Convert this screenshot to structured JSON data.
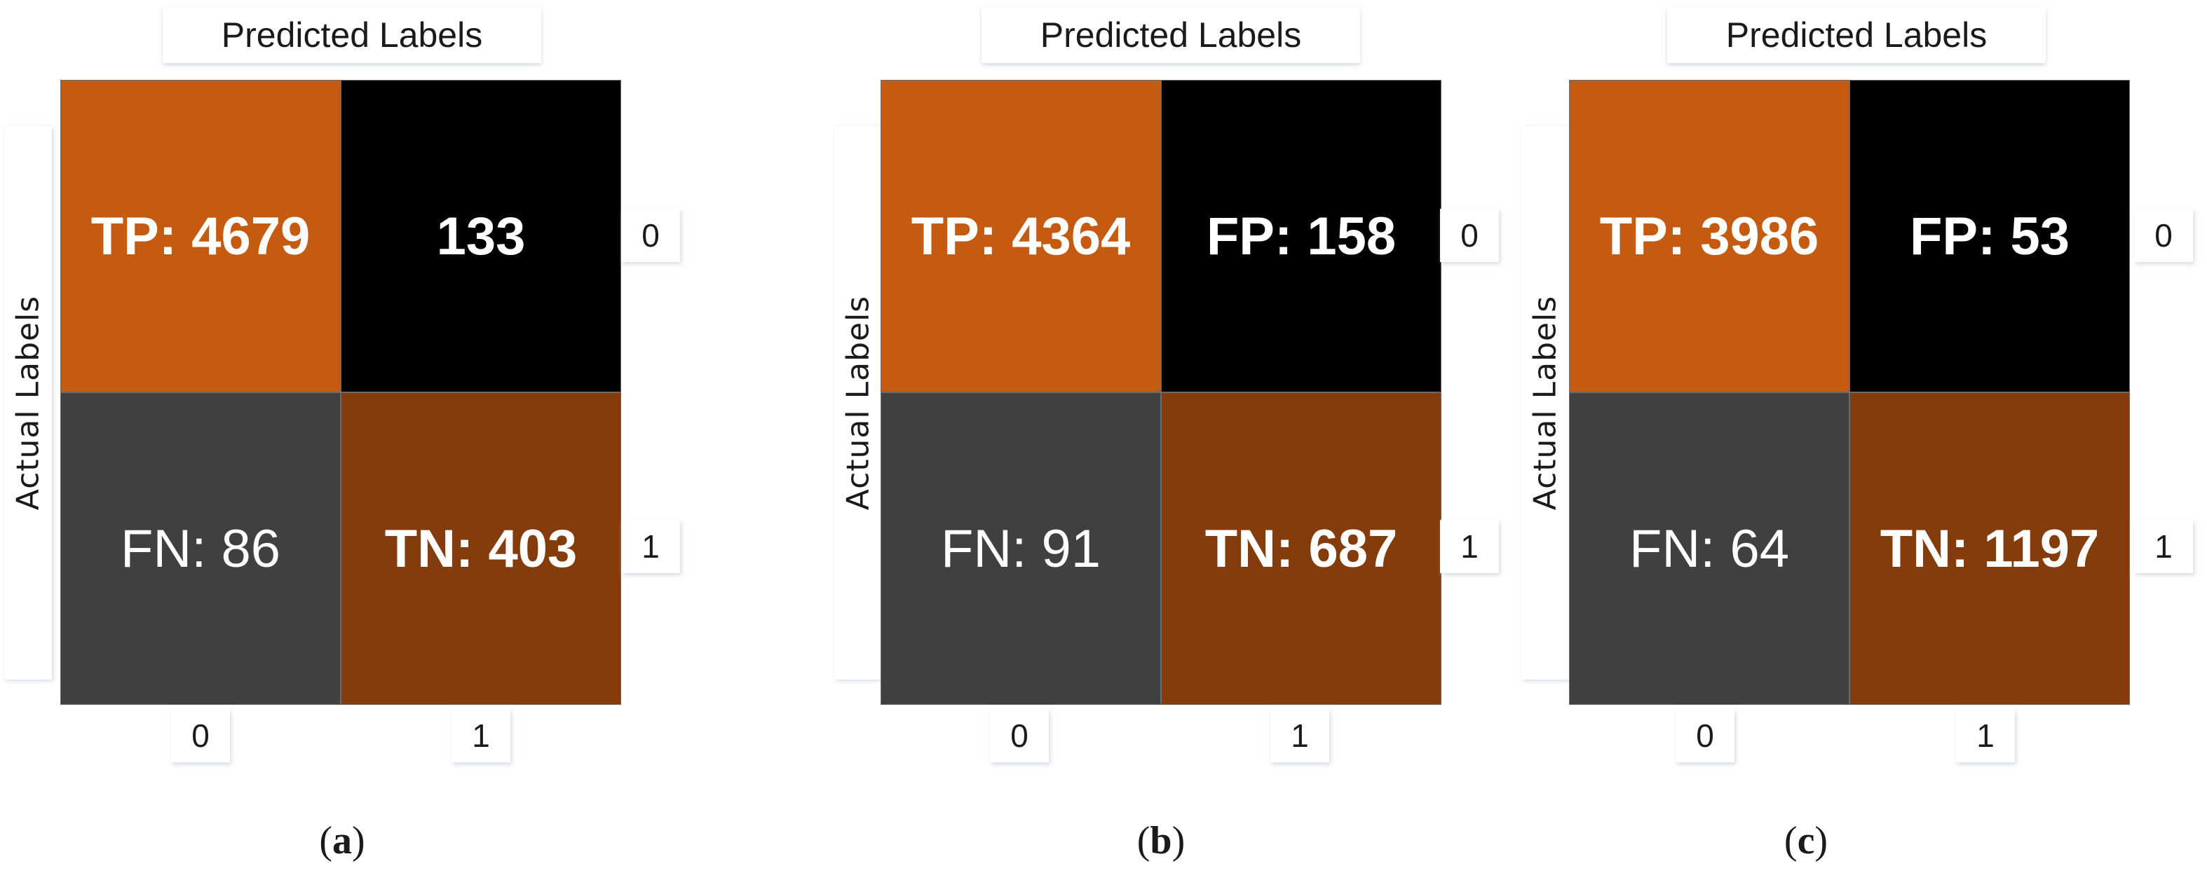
{
  "chart_data": [
    {
      "type": "heatmap",
      "caption": "a",
      "xlabel": "Predicted Labels",
      "ylabel": "Actual Labels",
      "x_ticks": [
        "0",
        "1"
      ],
      "y_ticks": [
        "0",
        "1"
      ],
      "cells": [
        [
          {
            "text": "TP: 4679",
            "bold": true,
            "color": "#c55a11"
          },
          {
            "text": "133",
            "bold": true,
            "color": "#000000"
          }
        ],
        [
          {
            "text": "FN: 86",
            "bold": false,
            "color": "#404040"
          },
          {
            "text": "TN: 403",
            "bold": true,
            "color": "#843c0c"
          }
        ]
      ]
    },
    {
      "type": "heatmap",
      "caption": "b",
      "xlabel": "Predicted Labels",
      "ylabel": "Actual Labels",
      "x_ticks": [
        "0",
        "1"
      ],
      "y_ticks": [
        "0",
        "1"
      ],
      "cells": [
        [
          {
            "text": "TP: 4364",
            "bold": true,
            "color": "#c55a11"
          },
          {
            "text": "FP: 158",
            "bold": true,
            "color": "#000000"
          }
        ],
        [
          {
            "text": "FN: 91",
            "bold": false,
            "color": "#404040"
          },
          {
            "text": "TN: 687",
            "bold": true,
            "color": "#843c0c"
          }
        ]
      ]
    },
    {
      "type": "heatmap",
      "caption": "c",
      "xlabel": "Predicted Labels",
      "ylabel": "Actual Labels",
      "x_ticks": [
        "0",
        "1"
      ],
      "y_ticks": [
        "0",
        "1"
      ],
      "cells": [
        [
          {
            "text": "TP: 3986",
            "bold": true,
            "color": "#c55a11"
          },
          {
            "text": "FP: 53",
            "bold": true,
            "color": "#000000"
          }
        ],
        [
          {
            "text": "FN: 64",
            "bold": false,
            "color": "#404040"
          },
          {
            "text": "TN: 1197",
            "bold": true,
            "color": "#843c0c"
          }
        ]
      ]
    }
  ]
}
